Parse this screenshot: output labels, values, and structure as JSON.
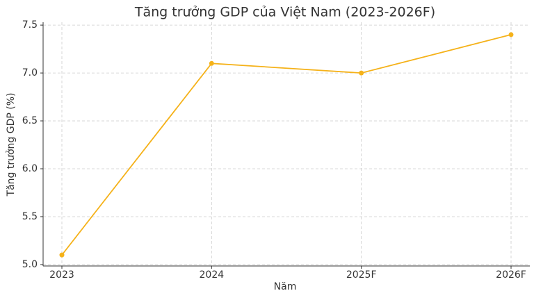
{
  "chart_data": {
    "type": "line",
    "title": "Tăng trưởng GDP của Việt Nam (2023-2026F)",
    "x_label": "Năm",
    "y_label": "Tăng trưởng GDP (%)",
    "categories": [
      "2023",
      "2024",
      "2025F",
      "2026F"
    ],
    "series": [
      {
        "name": "Tăng trưởng GDP",
        "color": "#f5b21a",
        "values": [
          5.1,
          7.1,
          7.0,
          7.4
        ]
      }
    ],
    "ylim": [
      4.985,
      7.53
    ],
    "yticks": [
      {
        "value": 5.0,
        "label": "5.0"
      },
      5.5,
      {
        "value": 6.0,
        "label": "6.0"
      },
      6.5,
      {
        "value": 7.0,
        "label": "7.0"
      },
      7.5
    ],
    "grid": true
  }
}
